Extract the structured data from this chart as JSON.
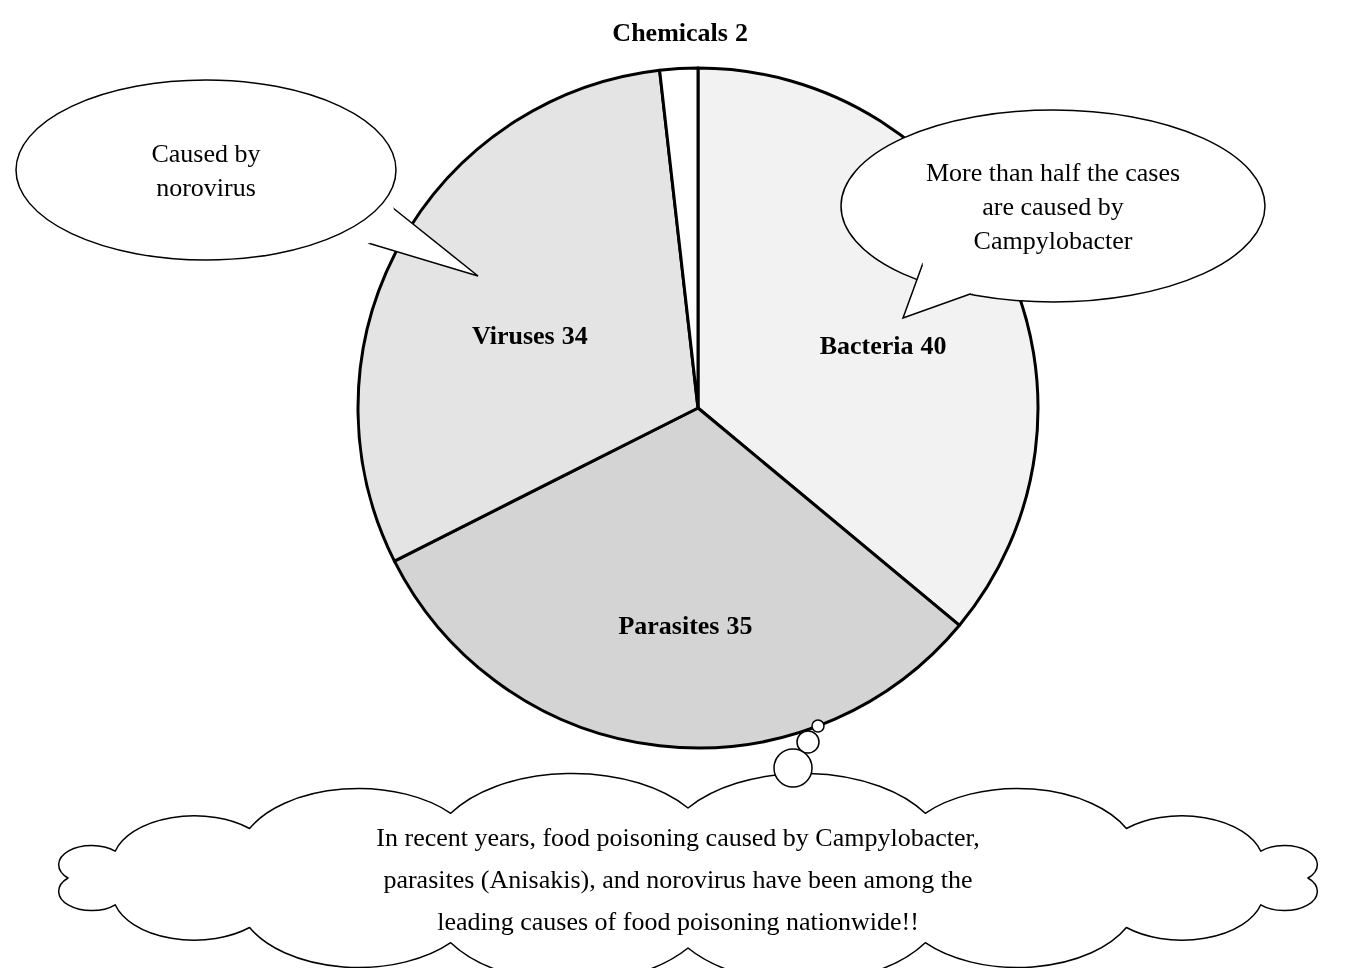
{
  "chart_data": {
    "type": "pie",
    "categories": [
      "Bacteria",
      "Parasites",
      "Viruses",
      "Chemicals"
    ],
    "values": [
      40,
      35,
      34,
      2
    ],
    "colors": [
      "#f2f2f2",
      "#d4d4d4",
      "#e4e4e4",
      "#ffffff"
    ],
    "data_labels": true,
    "annotations": [
      "Caused by norovirus",
      "More than half the cases are caused by Campylobacter",
      "In recent years, food poisoning caused by Campylobacter, parasites (Anisakis), and norovirus have been among the leading causes of food poisoning nationwide!!"
    ]
  }
}
